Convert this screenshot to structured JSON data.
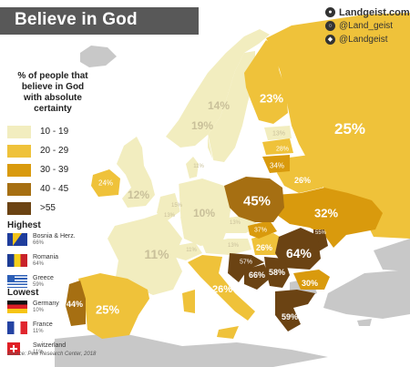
{
  "title": "Believe in God",
  "branding": {
    "site": "Landgeist.com",
    "instagram": "@Land_geist",
    "reddit": "@Landgeist",
    "site_icon": "globe-icon",
    "instagram_icon": "instagram-icon",
    "reddit_icon": "reddit-icon"
  },
  "legend": {
    "title_lines": [
      "% of people that",
      "believe in God",
      "with absolute",
      "certainty"
    ],
    "bins": [
      {
        "label": "10 - 19",
        "color": "#f2edbf"
      },
      {
        "label": "20 - 29",
        "color": "#efc23a"
      },
      {
        "label": "30 - 39",
        "color": "#d99a0d"
      },
      {
        "label": "40 - 45",
        "color": "#a66f12"
      },
      {
        "label": ">55",
        "color": "#6b4313"
      }
    ]
  },
  "highest": {
    "heading": "Highest",
    "items": [
      {
        "name": "Bosnia & Herz.",
        "value": "66%",
        "flag": "flag-bosnia"
      },
      {
        "name": "Romania",
        "value": "64%",
        "flag": "flag-romania"
      },
      {
        "name": "Greece",
        "value": "59%",
        "flag": "flag-greece"
      }
    ]
  },
  "lowest": {
    "heading": "Lowest",
    "items": [
      {
        "name": "Germany",
        "value": "10%",
        "flag": "flag-germany"
      },
      {
        "name": "France",
        "value": "11%",
        "flag": "flag-france"
      },
      {
        "name": "Switzerland",
        "value": "11%",
        "flag": "flag-switzerland"
      }
    ]
  },
  "source": "Source: Pew Research Center, 2018",
  "colors": {
    "title_bar": "#585858",
    "no_data": "#c8c8c8",
    "sea": "#ffffff"
  },
  "regions": [
    {
      "name": "Norway",
      "value": "14%",
      "color": "#f2edbf",
      "label_color": "#c9c09a"
    },
    {
      "name": "Sweden",
      "value": "19%",
      "color": "#f2edbf",
      "label_color": "#c9c09a"
    },
    {
      "name": "Finland",
      "value": "23%",
      "color": "#efc23a",
      "label_color": "#ffffff"
    },
    {
      "name": "Russia",
      "value": "25%",
      "color": "#efc23a",
      "label_color": "#ffffff"
    },
    {
      "name": "Estonia",
      "value": "13%",
      "color": "#f2edbf",
      "label_color": "#c9c09a"
    },
    {
      "name": "Latvia",
      "value": "28%",
      "color": "#efc23a",
      "label_color": "#ffffff"
    },
    {
      "name": "Lithuania",
      "value": "34%",
      "color": "#d99a0d",
      "label_color": "#ffffff"
    },
    {
      "name": "Belarus",
      "value": "26%",
      "color": "#efc23a",
      "label_color": "#ffffff"
    },
    {
      "name": "Ireland",
      "value": "24%",
      "color": "#efc23a",
      "label_color": "#ffffff"
    },
    {
      "name": "United Kingdom",
      "value": "12%",
      "color": "#f2edbf",
      "label_color": "#c9c09a"
    },
    {
      "name": "Denmark",
      "value": "11%",
      "color": "#f2edbf",
      "label_color": "#c9c09a"
    },
    {
      "name": "Netherlands",
      "value": "15%",
      "color": "#f2edbf",
      "label_color": "#c9c09a"
    },
    {
      "name": "Belgium",
      "value": "13%",
      "color": "#f2edbf",
      "label_color": "#c9c09a"
    },
    {
      "name": "Germany",
      "value": "10%",
      "color": "#f2edbf",
      "label_color": "#c9c09a"
    },
    {
      "name": "Poland",
      "value": "45%",
      "color": "#a66f12",
      "label_color": "#ffffff"
    },
    {
      "name": "Ukraine",
      "value": "32%",
      "color": "#d99a0d",
      "label_color": "#ffffff"
    },
    {
      "name": "Moldova",
      "value": "55%",
      "color": "#6b4313",
      "label_color": "#ffffff"
    },
    {
      "name": "Czechia",
      "value": "13%",
      "color": "#f2edbf",
      "label_color": "#c9c09a"
    },
    {
      "name": "Slovakia",
      "value": "37%",
      "color": "#d99a0d",
      "label_color": "#ffffff"
    },
    {
      "name": "Hungary",
      "value": "26%",
      "color": "#efc23a",
      "label_color": "#ffffff"
    },
    {
      "name": "Austria",
      "value": "13%",
      "color": "#f2edbf",
      "label_color": "#c9c09a"
    },
    {
      "name": "Switzerland",
      "value": "11%",
      "color": "#f2edbf",
      "label_color": "#c9c09a"
    },
    {
      "name": "France",
      "value": "11%",
      "color": "#f2edbf",
      "label_color": "#c9c09a"
    },
    {
      "name": "Romania",
      "value": "64%",
      "color": "#6b4313",
      "label_color": "#ffffff"
    },
    {
      "name": "Croatia",
      "value": "57%",
      "color": "#6b4313",
      "label_color": "#ffffff"
    },
    {
      "name": "Bosnia",
      "value": "66%",
      "color": "#6b4313",
      "label_color": "#ffffff"
    },
    {
      "name": "Serbia",
      "value": "58%",
      "color": "#6b4313",
      "label_color": "#ffffff"
    },
    {
      "name": "Bulgaria",
      "value": "30%",
      "color": "#d99a0d",
      "label_color": "#ffffff"
    },
    {
      "name": "Italy",
      "value": "26%",
      "color": "#efc23a",
      "label_color": "#ffffff"
    },
    {
      "name": "Spain",
      "value": "25%",
      "color": "#efc23a",
      "label_color": "#ffffff"
    },
    {
      "name": "Portugal",
      "value": "44%",
      "color": "#a66f12",
      "label_color": "#ffffff"
    },
    {
      "name": "Greece",
      "value": "59%",
      "color": "#6b4313",
      "label_color": "#ffffff"
    }
  ]
}
